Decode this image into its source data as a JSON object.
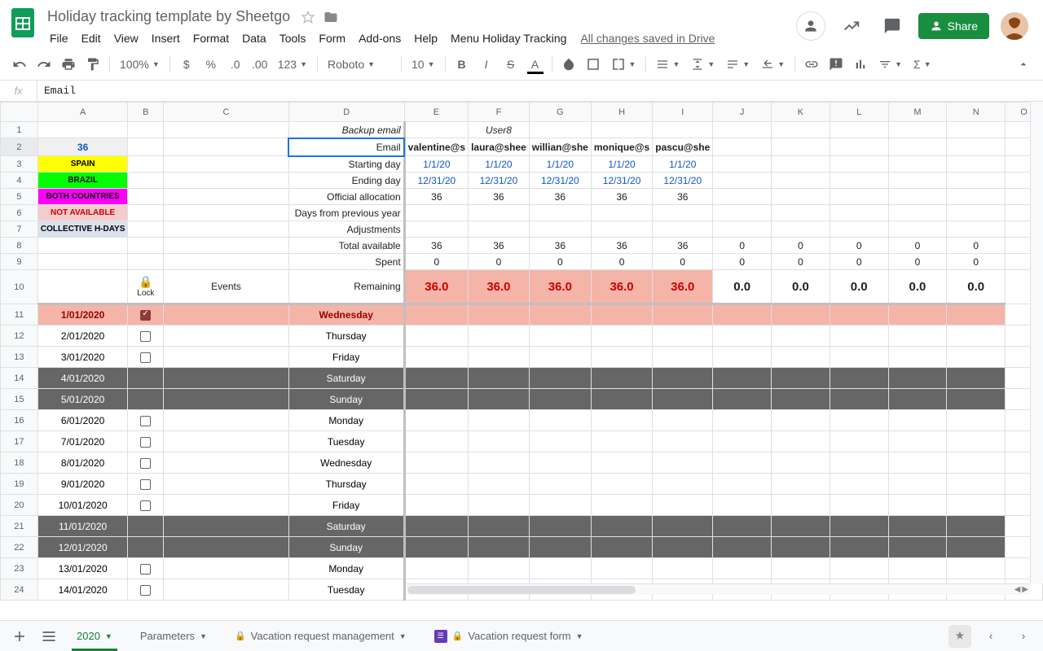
{
  "doc_title": "Holiday tracking template by Sheetgo",
  "menus": [
    "File",
    "Edit",
    "View",
    "Insert",
    "Format",
    "Data",
    "Tools",
    "Form",
    "Add-ons",
    "Help",
    "Menu Holiday Tracking"
  ],
  "save_status": "All changes saved in Drive",
  "share_label": "Share",
  "toolbar": {
    "zoom": "100%",
    "format": "123",
    "font": "Roboto",
    "font_size": "10"
  },
  "formula_value": "Email",
  "columns": [
    "A",
    "B",
    "C",
    "D",
    "E",
    "F",
    "G",
    "H",
    "I",
    "J",
    "K",
    "L",
    "M",
    "N",
    "O"
  ],
  "a2_value": "36",
  "legend": [
    {
      "label": "SPAIN",
      "bg": "#ffff00",
      "fg": "#000"
    },
    {
      "label": "BRAZIL",
      "bg": "#00ff00",
      "fg": "#000"
    },
    {
      "label": "BOTH COUNTRIES",
      "bg": "#ff00ff",
      "fg": "#000"
    },
    {
      "label": "NOT AVAILABLE",
      "bg": "#f4cccc",
      "fg": "#cc0000"
    },
    {
      "label": "COLLECTIVE H-DAYS",
      "bg": "#d9e2ec",
      "fg": "#000"
    }
  ],
  "d_labels": {
    "1": "Backup email",
    "2": "Email",
    "3": "Starting  day",
    "4": "Ending day",
    "5": "Official allocation",
    "6": "Days from previous year",
    "7": "Adjustments",
    "8": "Total available",
    "9": "Spent",
    "10": "Remaining"
  },
  "f1_label": "User8",
  "b10_lock": "Lock",
  "c10_label": "Events",
  "emails": [
    "valentine@s",
    "laura@shee",
    "willian@she",
    "monique@s",
    "pascu@she"
  ],
  "starting_day": "1/1/20",
  "ending_day": "12/31/20",
  "allocation": "36",
  "total_available": "36",
  "total_available_blank": "0",
  "spent": "0",
  "remaining": "36.0",
  "remaining_blank": "0.0",
  "colors": {
    "remaining_bg": "#f4b4a8",
    "remaining_fg": "#cc0000",
    "remaining_blank_fg": "#000",
    "link_blue": "#1155cc",
    "holiday_row_bg": "#f4b4a8",
    "holiday_row_fg": "#990000",
    "weekend_bg": "#666666",
    "weekend_fg": "#ffffff"
  },
  "date_rows": [
    {
      "n": 11,
      "date": "1/01/2020",
      "day": "Wednesday",
      "type": "holiday",
      "checked": true
    },
    {
      "n": 12,
      "date": "2/01/2020",
      "day": "Thursday",
      "type": "normal",
      "checked": false
    },
    {
      "n": 13,
      "date": "3/01/2020",
      "day": "Friday",
      "type": "normal",
      "checked": false
    },
    {
      "n": 14,
      "date": "4/01/2020",
      "day": "Saturday",
      "type": "weekend",
      "checked": false
    },
    {
      "n": 15,
      "date": "5/01/2020",
      "day": "Sunday",
      "type": "weekend",
      "checked": false
    },
    {
      "n": 16,
      "date": "6/01/2020",
      "day": "Monday",
      "type": "normal",
      "checked": false
    },
    {
      "n": 17,
      "date": "7/01/2020",
      "day": "Tuesday",
      "type": "normal",
      "checked": false
    },
    {
      "n": 18,
      "date": "8/01/2020",
      "day": "Wednesday",
      "type": "normal",
      "checked": false
    },
    {
      "n": 19,
      "date": "9/01/2020",
      "day": "Thursday",
      "type": "normal",
      "checked": false
    },
    {
      "n": 20,
      "date": "10/01/2020",
      "day": "Friday",
      "type": "normal",
      "checked": false
    },
    {
      "n": 21,
      "date": "11/01/2020",
      "day": "Saturday",
      "type": "weekend",
      "checked": false
    },
    {
      "n": 22,
      "date": "12/01/2020",
      "day": "Sunday",
      "type": "weekend",
      "checked": false
    },
    {
      "n": 23,
      "date": "13/01/2020",
      "day": "Monday",
      "type": "normal",
      "checked": false
    },
    {
      "n": 24,
      "date": "14/01/2020",
      "day": "Tuesday",
      "type": "normal",
      "checked": false
    }
  ],
  "sheet_tabs": [
    {
      "label": "2020",
      "active": true
    },
    {
      "label": "Parameters",
      "active": false
    },
    {
      "label": "Vacation request management",
      "active": false,
      "lock": true
    },
    {
      "label": "Vacation request form",
      "active": false,
      "lock": true,
      "form": true
    }
  ]
}
